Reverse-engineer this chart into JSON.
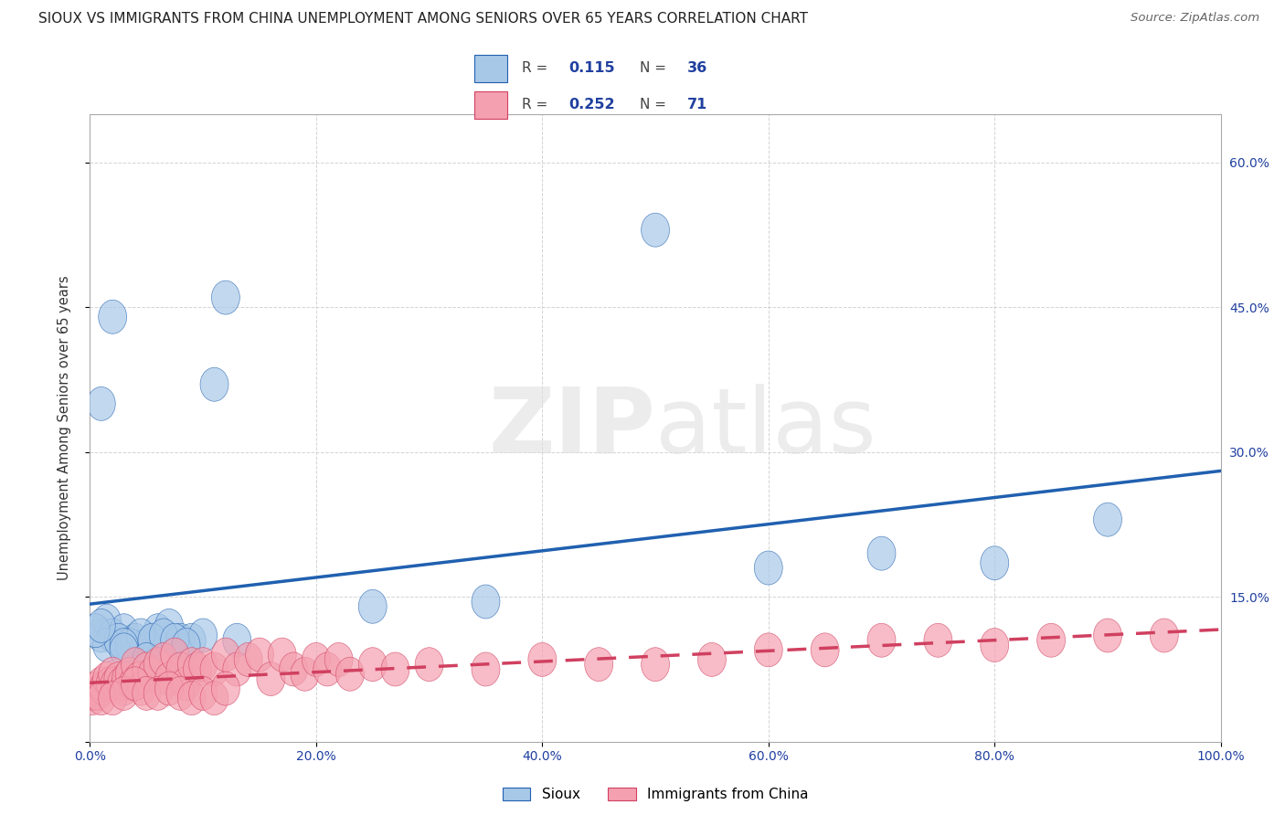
{
  "title": "SIOUX VS IMMIGRANTS FROM CHINA UNEMPLOYMENT AMONG SENIORS OVER 65 YEARS CORRELATION CHART",
  "source": "Source: ZipAtlas.com",
  "ylabel": "Unemployment Among Seniors over 65 years",
  "watermark": "ZIPatlas",
  "sioux_color": "#a8c8e8",
  "china_color": "#f4a0b0",
  "sioux_line_color": "#2060b0",
  "china_line_color": "#d04060",
  "bg_color": "#ffffff",
  "grid_color": "#c8c8c8",
  "legend_text_color": "#2040a0",
  "tick_color": "#2040a0",
  "title_color": "#222222",
  "xlim": [
    0,
    100
  ],
  "ylim": [
    0,
    65
  ],
  "sioux_x": [
    1.0,
    1.5,
    2.0,
    3.0,
    4.0,
    5.0,
    6.0,
    7.0,
    8.0,
    9.0,
    10.0,
    11.0,
    12.0,
    13.0,
    1.5,
    2.5,
    3.5,
    4.5,
    5.5,
    6.5,
    7.5,
    8.5,
    1.0,
    2.0,
    3.0,
    25.0,
    35.0,
    50.0,
    60.0,
    70.0,
    80.0,
    90.0,
    0.5,
    1.0,
    3.0,
    5.0
  ],
  "sioux_y": [
    11.0,
    12.5,
    11.0,
    11.5,
    10.5,
    10.0,
    11.5,
    12.0,
    10.5,
    10.5,
    11.0,
    37.0,
    46.0,
    10.5,
    10.0,
    10.5,
    10.0,
    11.0,
    10.5,
    11.0,
    10.5,
    10.0,
    35.0,
    44.0,
    10.0,
    14.0,
    14.5,
    53.0,
    18.0,
    19.5,
    18.5,
    23.0,
    11.5,
    12.0,
    9.5,
    8.5
  ],
  "china_x": [
    0.2,
    0.3,
    0.5,
    0.7,
    1.0,
    1.2,
    1.5,
    1.8,
    2.0,
    2.2,
    2.5,
    2.8,
    3.0,
    3.2,
    3.5,
    3.8,
    4.0,
    4.3,
    4.6,
    5.0,
    5.5,
    6.0,
    6.5,
    7.0,
    7.5,
    8.0,
    8.5,
    9.0,
    9.5,
    10.0,
    11.0,
    12.0,
    13.0,
    14.0,
    15.0,
    16.0,
    17.0,
    18.0,
    19.0,
    20.0,
    21.0,
    22.0,
    23.0,
    25.0,
    27.0,
    30.0,
    35.0,
    40.0,
    45.0,
    50.0,
    55.0,
    60.0,
    65.0,
    70.0,
    75.0,
    80.0,
    85.0,
    90.0,
    95.0,
    1.0,
    2.0,
    3.0,
    4.0,
    5.0,
    6.0,
    7.0,
    8.0,
    9.0,
    10.0,
    11.0,
    12.0
  ],
  "china_y": [
    4.5,
    5.0,
    5.5,
    5.0,
    6.0,
    5.5,
    6.5,
    6.0,
    7.0,
    6.0,
    6.5,
    6.0,
    5.5,
    6.5,
    7.0,
    6.0,
    8.0,
    6.5,
    5.5,
    7.5,
    7.0,
    8.0,
    8.5,
    6.5,
    9.0,
    7.5,
    6.0,
    8.0,
    7.5,
    8.0,
    7.5,
    9.0,
    7.5,
    8.5,
    9.0,
    6.5,
    9.0,
    7.5,
    7.0,
    8.5,
    7.5,
    8.5,
    7.0,
    8.0,
    7.5,
    8.0,
    7.5,
    8.5,
    8.0,
    8.0,
    8.5,
    9.5,
    9.5,
    10.5,
    10.5,
    10.0,
    10.5,
    11.0,
    11.0,
    4.5,
    4.5,
    5.0,
    6.0,
    5.0,
    5.0,
    5.5,
    5.0,
    4.5,
    5.0,
    4.5,
    5.5
  ]
}
